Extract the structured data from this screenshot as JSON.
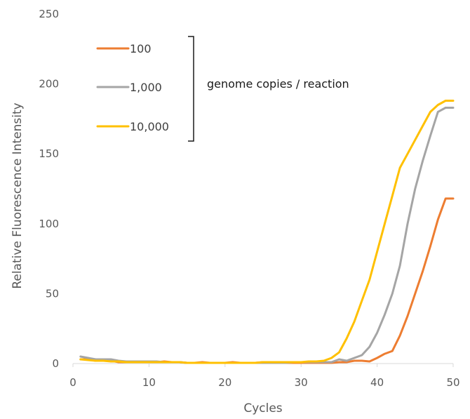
{
  "chart_data": {
    "type": "line",
    "title": "",
    "xlabel": "Cycles",
    "ylabel": "Relative Fluorescence Intensity",
    "xlim": [
      0,
      50
    ],
    "ylim": [
      0,
      250
    ],
    "x_ticks": [
      0,
      10,
      20,
      30,
      40,
      50
    ],
    "y_ticks": [
      0,
      50,
      100,
      150,
      200,
      250
    ],
    "grid": false,
    "legend_position": "top-left",
    "annotation": "genome copies / reaction",
    "x": [
      1,
      2,
      3,
      4,
      5,
      6,
      7,
      8,
      9,
      10,
      11,
      12,
      13,
      14,
      15,
      16,
      17,
      18,
      19,
      20,
      21,
      22,
      23,
      24,
      25,
      26,
      27,
      28,
      29,
      30,
      31,
      32,
      33,
      34,
      35,
      36,
      37,
      38,
      39,
      40,
      41,
      42,
      43,
      44,
      45,
      46,
      47,
      48,
      49,
      50
    ],
    "series": [
      {
        "name": "100",
        "color": "#ED7D31",
        "values": [
          3,
          3,
          2,
          2,
          2,
          1,
          1,
          1,
          1,
          1,
          1,
          1.5,
          1,
          1,
          0.5,
          0.5,
          1,
          0.5,
          0.5,
          0.5,
          1,
          0.5,
          0.5,
          0.5,
          1,
          0.5,
          0.5,
          0.5,
          0.5,
          0.5,
          0.5,
          0.5,
          0.5,
          0.5,
          1,
          1,
          2,
          2,
          1.5,
          4,
          7,
          9,
          20,
          34,
          50,
          66,
          84,
          103,
          118,
          118
        ]
      },
      {
        "name": "1,000",
        "color": "#A5A5A5",
        "values": [
          5,
          4,
          3,
          3,
          3,
          2,
          1.5,
          1.5,
          1.5,
          1.5,
          1.5,
          1,
          1,
          1,
          0.5,
          0.5,
          0.5,
          0.5,
          0.5,
          0.5,
          0.5,
          0.5,
          0.5,
          0.5,
          0.5,
          0.5,
          0.5,
          0.5,
          1,
          1,
          1,
          1,
          1,
          1,
          3,
          2,
          4,
          6,
          12,
          22,
          35,
          50,
          70,
          100,
          125,
          145,
          163,
          180,
          183,
          183
        ]
      },
      {
        "name": "10,000",
        "color": "#FFC000",
        "values": [
          3,
          2.5,
          2,
          2,
          1.5,
          1.5,
          1,
          1,
          1,
          1,
          1,
          1,
          1,
          1,
          0.5,
          0.5,
          0.5,
          0.5,
          0.5,
          0.5,
          0.5,
          0.5,
          0.5,
          0.5,
          1,
          1,
          1,
          1,
          1,
          1,
          1.5,
          1.5,
          2,
          4,
          8,
          18,
          30,
          45,
          60,
          80,
          100,
          120,
          140,
          150,
          160,
          170,
          180,
          185,
          188,
          188
        ]
      }
    ]
  }
}
